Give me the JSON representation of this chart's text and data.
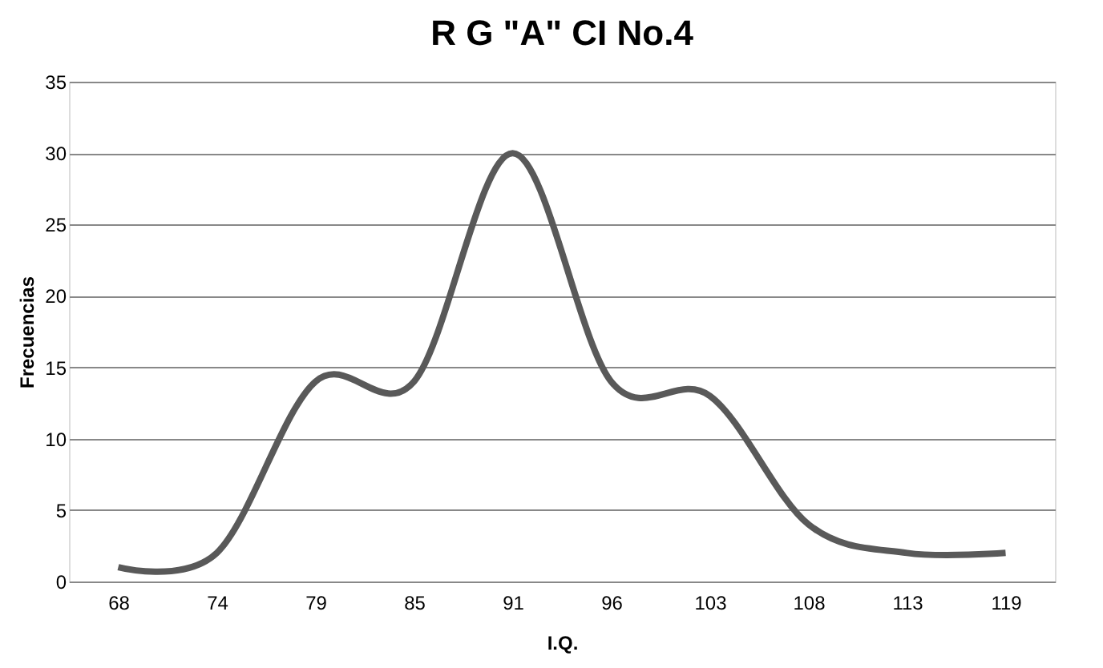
{
  "chart_data": {
    "type": "line",
    "title": "R G \"A\" CI No.4",
    "xlabel": "I.Q.",
    "ylabel": "Frecuencias",
    "categories": [
      "68",
      "74",
      "79",
      "85",
      "91",
      "96",
      "103",
      "108",
      "113",
      "119"
    ],
    "series": [
      {
        "color": "#595959",
        "values": [
          1,
          2,
          14,
          14,
          30,
          14,
          13,
          4,
          2,
          2
        ]
      }
    ],
    "ylim": [
      0,
      35
    ],
    "yticks": [
      0,
      5,
      10,
      15,
      20,
      25,
      30,
      35
    ],
    "grid": "y",
    "marker": "none",
    "line_style": "solid"
  }
}
